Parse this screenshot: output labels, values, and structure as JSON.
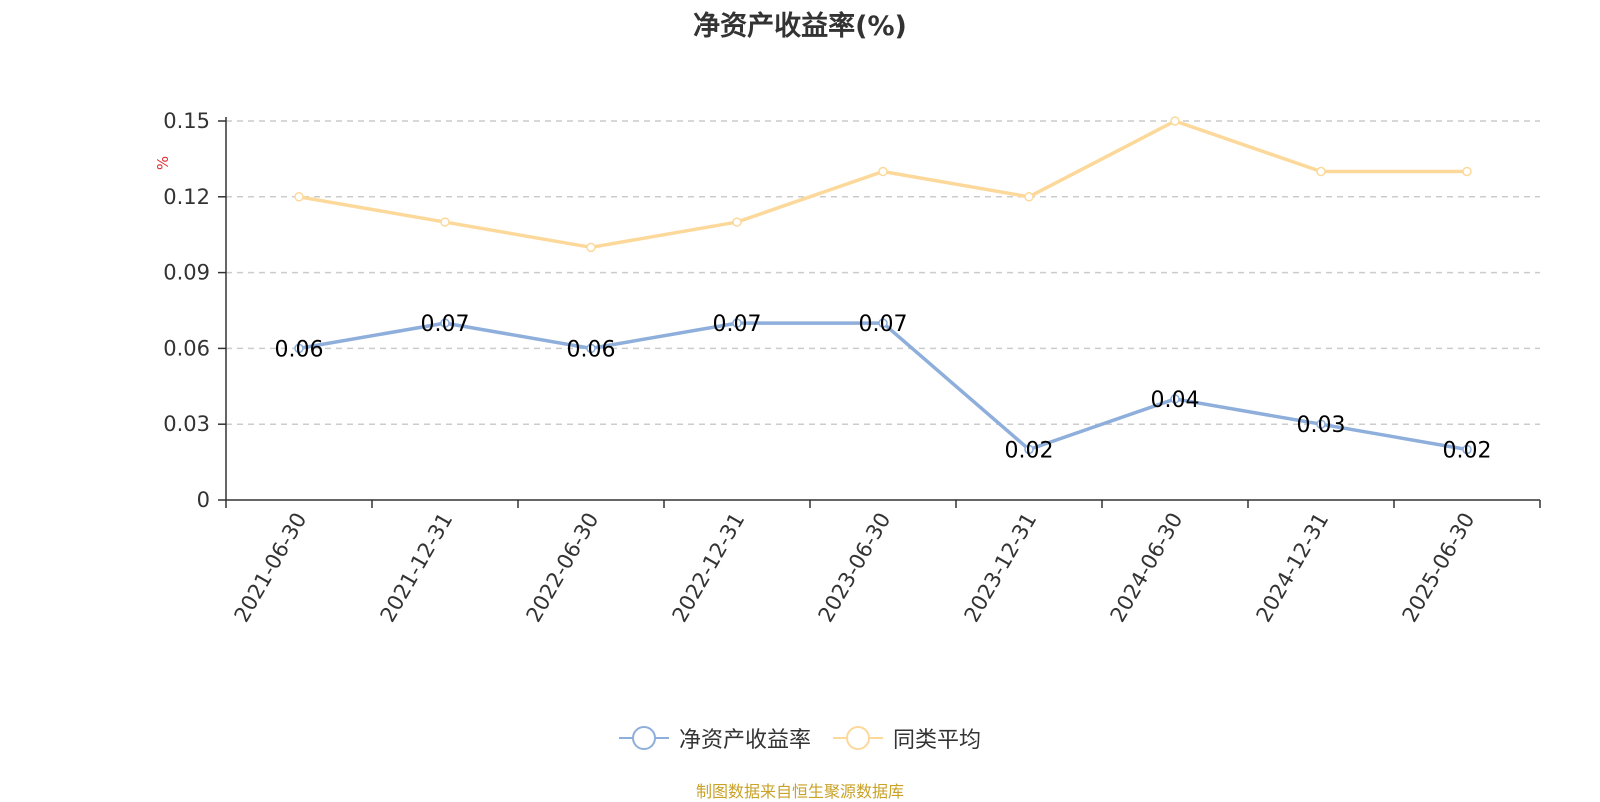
{
  "chart_data": {
    "type": "line",
    "title": "净资产收益率(%)",
    "ylabel": "%",
    "xlabel": "",
    "categories": [
      "2021-06-30",
      "2021-12-31",
      "2022-06-30",
      "2022-12-31",
      "2023-06-30",
      "2023-12-31",
      "2024-06-30",
      "2024-12-31",
      "2025-06-30"
    ],
    "ylim": [
      0,
      0.15
    ],
    "yticks": [
      "0",
      "0.03",
      "0.06",
      "0.09",
      "0.12",
      "0.15"
    ],
    "grid": true,
    "legend_position": "bottom",
    "series": [
      {
        "name": "净资产收益率",
        "color": "#8eaedb",
        "values": [
          0.06,
          0.07,
          0.06,
          0.07,
          0.07,
          0.02,
          0.04,
          0.03,
          0.02
        ],
        "data_labels": [
          "0.06",
          "0.07",
          "0.06",
          "0.07",
          "0.07",
          "0.02",
          "0.04",
          "0.03",
          "0.02"
        ]
      },
      {
        "name": "同类平均",
        "color": "#fcd99a",
        "values": [
          0.12,
          0.11,
          0.1,
          0.11,
          0.13,
          0.12,
          0.15,
          0.13,
          0.13
        ]
      }
    ]
  },
  "source": "制图数据来自恒生聚源数据库"
}
